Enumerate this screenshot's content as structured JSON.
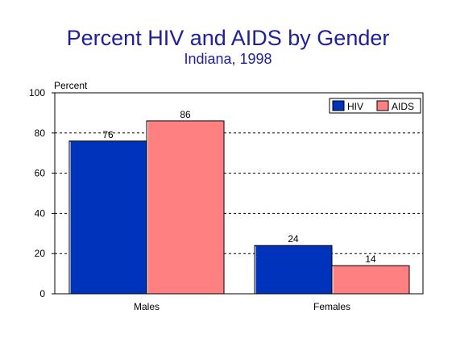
{
  "chart_data": {
    "type": "bar",
    "title": "Percent HIV and AIDS by Gender",
    "subtitle": "Indiana, 1998",
    "ylabel": "Percent",
    "xlabel": "",
    "ylim": [
      0,
      100
    ],
    "yticks": [
      0,
      20,
      40,
      60,
      80,
      100
    ],
    "categories": [
      "Males",
      "Females"
    ],
    "series": [
      {
        "name": "HIV",
        "values": [
          76,
          24
        ],
        "color": "#0033bb"
      },
      {
        "name": "AIDS",
        "values": [
          86,
          14
        ],
        "color": "#ff8080"
      }
    ],
    "grid": true,
    "legend_position": "top-right"
  }
}
